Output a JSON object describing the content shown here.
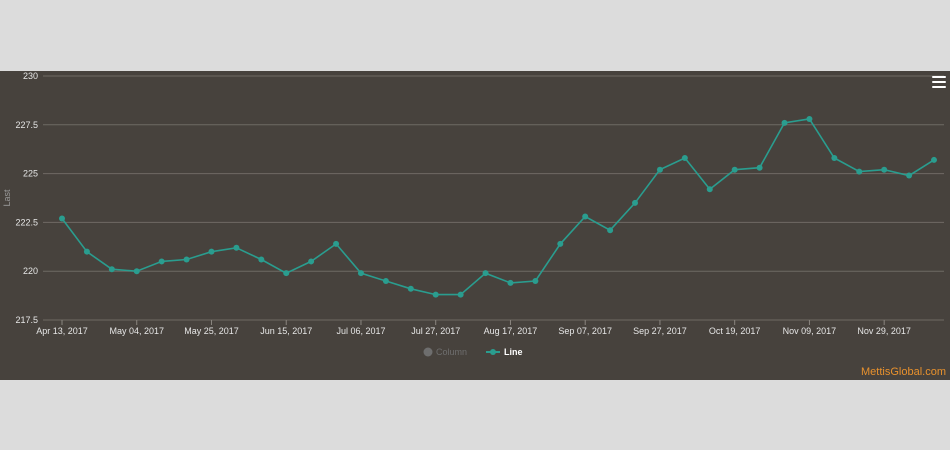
{
  "chart_data": {
    "type": "line",
    "title": "",
    "ylabel": "Last",
    "ylim": [
      217.5,
      230
    ],
    "y_ticks": [
      "217.5",
      "220",
      "222.5",
      "225",
      "227.5",
      "230"
    ],
    "y_tick_values": [
      217.5,
      220,
      222.5,
      225,
      227.5,
      230
    ],
    "x": [
      "2017-04-13",
      "2017-04-20",
      "2017-04-27",
      "2017-05-04",
      "2017-05-11",
      "2017-05-18",
      "2017-05-25",
      "2017-06-01",
      "2017-06-08",
      "2017-06-15",
      "2017-06-22",
      "2017-06-29",
      "2017-07-06",
      "2017-07-13",
      "2017-07-20",
      "2017-07-27",
      "2017-08-03",
      "2017-08-10",
      "2017-08-17",
      "2017-08-24",
      "2017-08-31",
      "2017-09-07",
      "2017-09-14",
      "2017-09-20",
      "2017-09-27",
      "2017-10-04",
      "2017-10-11",
      "2017-10-19",
      "2017-10-26",
      "2017-11-02",
      "2017-11-09",
      "2017-11-16",
      "2017-11-22",
      "2017-11-29",
      "2017-12-06",
      "2017-12-13"
    ],
    "x_tick_labels": [
      "Apr 13, 2017",
      "May 04, 2017",
      "May 25, 2017",
      "Jun 15, 2017",
      "Jul 06, 2017",
      "Jul 27, 2017",
      "Aug 17, 2017",
      "Sep 07, 2017",
      "Sep 27, 2017",
      "Oct 19, 2017",
      "Nov 09, 2017",
      "Nov 29, 2017"
    ],
    "x_tick_indices": [
      0,
      3,
      6,
      9,
      12,
      15,
      18,
      21,
      24,
      27,
      30,
      33
    ],
    "series": [
      {
        "name": "Line",
        "color": "#2a9d8f",
        "values": [
          222.7,
          221.0,
          220.1,
          220.0,
          220.5,
          220.6,
          221.0,
          221.2,
          220.6,
          219.9,
          220.5,
          221.4,
          219.9,
          219.5,
          219.1,
          218.8,
          218.8,
          219.9,
          219.4,
          219.5,
          221.4,
          222.8,
          222.1,
          223.5,
          225.2,
          225.8,
          224.2,
          225.2,
          225.3,
          227.6,
          227.8,
          225.8,
          225.1,
          225.2,
          224.9,
          225.7
        ]
      },
      {
        "name": "Column",
        "color": "#6e6e6e",
        "hidden": true
      }
    ],
    "grid": true,
    "legend_position": "bottom-center"
  },
  "watermark": "MettisGlobal.com",
  "menu_icon": "hamburger-menu-icon"
}
